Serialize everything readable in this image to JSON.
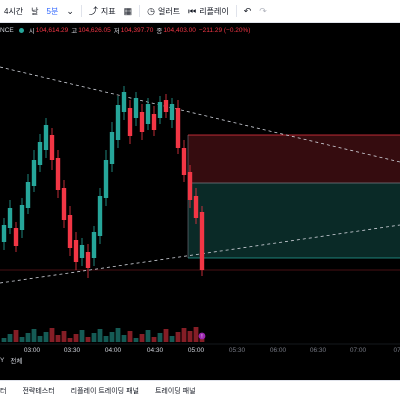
{
  "toolbar": {
    "interval_hours": "4시간",
    "interval_day": "날",
    "interval_5min": "5분",
    "indicators": "지표",
    "alerts": "얼러트",
    "replay": "리플레이"
  },
  "symbol_bar": {
    "symbol_tail": "NCE",
    "open_label": "시",
    "open": "104,614.29",
    "high_label": "고",
    "high": "104,626.05",
    "low_label": "저",
    "low": "104,397.70",
    "close_label": "종",
    "close": "104,403.00",
    "change": "−211.29 (−0.20%)"
  },
  "time_axis": {
    "labels": [
      "03:00",
      "03:30",
      "04:00",
      "04:30",
      "05:00",
      "05:30",
      "06:00",
      "06:30",
      "07:00",
      "07:"
    ]
  },
  "bottom_bar": {
    "range_tail": "Y",
    "all": "전체"
  },
  "tabs": [
    "터",
    "전략테스터",
    "리플레이 트레이딩 패널",
    "트레이딩 패널"
  ],
  "colors": {
    "up": "#26a69a",
    "down": "#f23645",
    "background": "#000000"
  }
}
